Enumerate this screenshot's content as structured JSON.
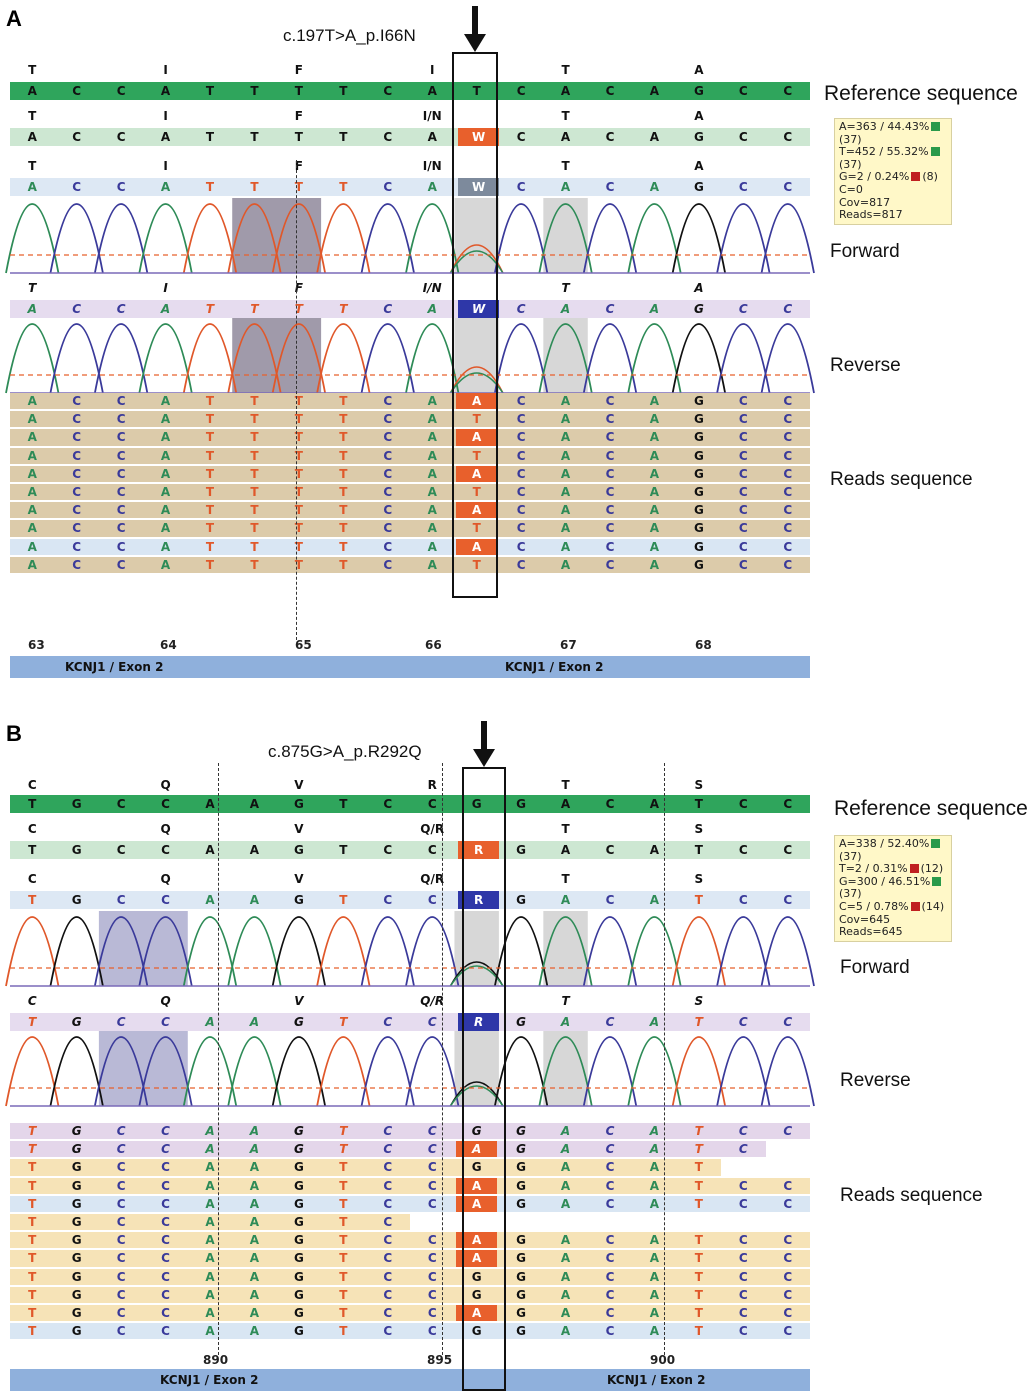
{
  "panels": [
    {
      "label": "A",
      "mutation": "c.197T>A_p.I66N",
      "bases": [
        "A",
        "C",
        "C",
        "A",
        "T",
        "T",
        "T",
        "T",
        "C",
        "A",
        "T",
        "C",
        "A",
        "C",
        "A",
        "G",
        "C",
        "C"
      ],
      "amino_ref": [
        "T",
        "",
        "",
        "I",
        "",
        "",
        "F",
        "",
        "",
        "I",
        "",
        "",
        "T",
        "",
        "",
        "A",
        "",
        ""
      ],
      "amino_fwd": [
        "T",
        "",
        "",
        "I",
        "",
        "",
        "F",
        "",
        "",
        "I/N",
        "",
        "",
        "T",
        "",
        "",
        "A",
        "",
        ""
      ],
      "amino_rev": [
        "T",
        "",
        "",
        "I",
        "",
        "",
        "F",
        "",
        "",
        "I/N",
        "",
        "",
        "T",
        "",
        "",
        "A",
        "",
        ""
      ],
      "mut_index": 10,
      "het_code": "W",
      "stats": [
        "A=363 / 44.43%",
        "(37)",
        "T=452 / 55.32%",
        "(37)",
        "G=2 / 0.24%",
        "(8)",
        "C=0",
        "Cov=817",
        "Reads=817"
      ],
      "stats_lines": [
        {
          "text": "A=363 / 44.43%",
          "sq": "#2a9a4a",
          "q": "(37)"
        },
        {
          "text": "T=452 / 55.32%",
          "sq": "#2a9a4a",
          "q": "(37)"
        },
        {
          "text": "G=2 / 0.24%",
          "sq": "#c02020",
          "q": "(8)"
        },
        {
          "text": "C=0",
          "sq": "",
          "q": ""
        },
        {
          "text": "Cov=817",
          "sq": "",
          "q": ""
        },
        {
          "text": "Reads=817",
          "sq": "",
          "q": ""
        }
      ],
      "reads_mut": [
        "A",
        "T",
        "A",
        "T",
        "A",
        "T",
        "A",
        "T",
        "A",
        "T"
      ],
      "coords": [
        "63",
        "64",
        "65",
        "66",
        "67",
        "68"
      ],
      "exon_label": "KCNJ1 / Exon 2"
    },
    {
      "label": "B",
      "mutation": "c.875G>A_p.R292Q",
      "bases": [
        "T",
        "G",
        "C",
        "C",
        "A",
        "A",
        "G",
        "T",
        "C",
        "C",
        "G",
        "G",
        "A",
        "C",
        "A",
        "T",
        "C",
        "C"
      ],
      "amino_ref": [
        "C",
        "",
        "",
        "Q",
        "",
        "",
        "V",
        "",
        "",
        "R",
        "",
        "",
        "T",
        "",
        "",
        "S",
        "",
        ""
      ],
      "amino_fwd": [
        "C",
        "",
        "",
        "Q",
        "",
        "",
        "V",
        "",
        "",
        "Q/R",
        "",
        "",
        "T",
        "",
        "",
        "S",
        "",
        ""
      ],
      "amino_rev": [
        "C",
        "",
        "",
        "Q",
        "",
        "",
        "V",
        "",
        "",
        "Q/R",
        "",
        "",
        "T",
        "",
        "",
        "S",
        "",
        ""
      ],
      "mut_index": 10,
      "het_code": "R",
      "stats_lines": [
        {
          "text": "A=338 / 52.40%",
          "sq": "#2a9a4a",
          "q": "(37)"
        },
        {
          "text": "T=2 / 0.31%",
          "sq": "#c02020",
          "q": "(12)"
        },
        {
          "text": "G=300 / 46.51%",
          "sq": "#2a9a4a",
          "q": "(37)"
        },
        {
          "text": "C=5 / 0.78%",
          "sq": "#c02020",
          "q": "(14)"
        },
        {
          "text": "Cov=645",
          "sq": "",
          "q": ""
        },
        {
          "text": "Reads=645",
          "sq": "",
          "q": ""
        }
      ],
      "reads_mut": [
        "G",
        "A",
        "G",
        "A",
        "A",
        "",
        "A",
        "A",
        "G",
        "G",
        "A",
        "G"
      ],
      "coords": [
        "890",
        "895",
        "900"
      ],
      "exon_label": "KCNJ1 / Exon 2"
    }
  ],
  "labels": {
    "reference": "Reference sequence",
    "forward": "Forward",
    "reverse": "Reverse",
    "reads": "Reads sequence"
  },
  "colors": {
    "A": "#2e8b57",
    "C": "#3a3a9a",
    "G": "#111111",
    "T": "#e0582a",
    "ref_bar": "#2fa55c",
    "cons_bar": "#cde7d2",
    "fwd_bar": "#dde8f4",
    "rev_bar": "#e6dcef",
    "read_tan": "#dccbaa",
    "read_yellow": "#f6e3b7",
    "read_blue": "#d9e6f3",
    "read_lav": "#e4d6ea",
    "mut_orange": "#e8602c",
    "het_blue": "#2e37a8",
    "het_grey": "#7d8a9c"
  }
}
